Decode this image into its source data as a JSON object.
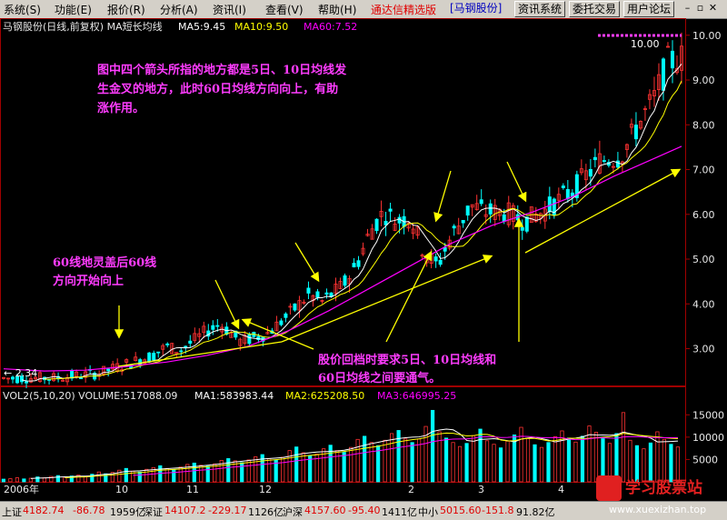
{
  "menu": {
    "items": [
      "系统(S)",
      "功能(E)",
      "报价(R)",
      "分析(A)",
      "资讯(I)",
      "查看(V)",
      "帮助(H)"
    ],
    "brand": "通达信精选版",
    "stock_button": "[马钢股份]",
    "buttons": [
      "资讯系统",
      "委托交易",
      "用户论坛"
    ]
  },
  "chart_header": {
    "title": "马钢股份(日线,前复权) MA短长均线",
    "ma5": "MA5:9.45",
    "ma10": "MA10:9.50",
    "ma60": "MA60:7.52"
  },
  "volume_header": {
    "title": "VOL2(5,10,20) VOLUME:517088.09",
    "ma1": "MA1:583983.44",
    "ma2": "MA2:625208.50",
    "ma3": "MA3:646995.25"
  },
  "annotations": {
    "top_line1": "图中四个箭头所指的地方都是5日、10日均线发",
    "top_line2": "生金叉的地方，此时60日均线方向向上，有助",
    "top_line3": "涨作用。",
    "left_line1": "60线地灵盖后60线",
    "left_line2": "方向开始向上",
    "bottom_line1": "股价回档时要求5日、10日均线和",
    "bottom_line2": "60日均线之间要通气。"
  },
  "labels": {
    "high_price": "10.00",
    "low_price": "← 2.34"
  },
  "time_axis": [
    "2006年",
    "10",
    "11",
    "12",
    "2",
    "3",
    "4"
  ],
  "status": {
    "sh_label": "上证",
    "sh_value": "4182.74",
    "sh_change": "-86.78",
    "sh_amount": "1959亿",
    "sz_label": "深证",
    "sz_value": "14107.2",
    "sz_change": "-229.17",
    "sz_amount": "1126亿",
    "hs_label": "沪深",
    "hs_value": "4157.60",
    "hs_change": "-95.40",
    "hs_amount": "1411亿",
    "zx_label": "中小",
    "zx_value": "5015.60",
    "zx_change": "-151.8",
    "zx_amount": "91.82亿"
  },
  "watermark": {
    "title": "学习股票站",
    "url": "www.xuexizhan.top"
  },
  "colors": {
    "up": "#ff3232",
    "down": "#00ffff",
    "ma5": "#ffffff",
    "ma10": "#ffff00",
    "ma60": "#ff00ff",
    "annotation": "#ff3cff",
    "arrow": "#ffff00"
  },
  "chart_data": {
    "type": "candlestick",
    "price_axis": {
      "ticks": [
        3.0,
        4.0,
        5.0,
        6.0,
        7.0,
        8.0,
        9.0,
        10.0
      ],
      "range": [
        2.3,
        10.3
      ]
    },
    "volume_axis": {
      "ticks": [
        5000,
        10000,
        15000
      ],
      "range": [
        0,
        17500
      ]
    },
    "ma60_path": [
      [
        0,
        2.55
      ],
      [
        30,
        2.5
      ],
      [
        60,
        2.52
      ],
      [
        90,
        2.6
      ],
      [
        120,
        2.7
      ],
      [
        150,
        2.85
      ],
      [
        180,
        3.05
      ],
      [
        210,
        3.4
      ],
      [
        240,
        3.85
      ],
      [
        270,
        4.35
      ],
      [
        300,
        4.85
      ],
      [
        330,
        5.35
      ],
      [
        360,
        5.75
      ],
      [
        390,
        6.05
      ],
      [
        420,
        6.4
      ],
      [
        450,
        6.85
      ],
      [
        480,
        7.25
      ],
      [
        500,
        7.52
      ]
    ],
    "price_path": [
      [
        0,
        2.34
      ],
      [
        40,
        2.35
      ],
      [
        70,
        2.45
      ],
      [
        90,
        2.65
      ],
      [
        110,
        2.85
      ],
      [
        120,
        3.05
      ],
      [
        130,
        2.95
      ],
      [
        150,
        3.4
      ],
      [
        160,
        3.55
      ],
      [
        175,
        3.15
      ],
      [
        195,
        3.35
      ],
      [
        210,
        3.75
      ],
      [
        225,
        4.2
      ],
      [
        235,
        4.05
      ],
      [
        250,
        4.4
      ],
      [
        260,
        4.85
      ],
      [
        270,
        5.6
      ],
      [
        280,
        6.05
      ],
      [
        290,
        5.85
      ],
      [
        300,
        5.95
      ],
      [
        310,
        5.15
      ],
      [
        320,
        4.85
      ],
      [
        330,
        5.5
      ],
      [
        345,
        6.2
      ],
      [
        355,
        6.05
      ],
      [
        370,
        6.05
      ],
      [
        385,
        5.85
      ],
      [
        400,
        6.1
      ],
      [
        420,
        6.55
      ],
      [
        440,
        7.2
      ],
      [
        455,
        7.3
      ],
      [
        470,
        8.1
      ],
      [
        480,
        8.6
      ],
      [
        490,
        9.4
      ],
      [
        500,
        9.5
      ]
    ],
    "volume_series": [
      600,
      700,
      900,
      650,
      800,
      1100,
      900,
      1200,
      1400,
      1000,
      1300,
      1500,
      1200,
      1700,
      2200,
      1800,
      2100,
      2600,
      3000,
      2400,
      2200,
      2800,
      3200,
      3600,
      3000,
      2700,
      3300,
      3900,
      4200,
      3700,
      3500,
      4000,
      4800,
      5200,
      4700,
      4300,
      4900,
      5600,
      6100,
      5200,
      4800,
      5500,
      7000,
      7800,
      6500,
      5800,
      6200,
      7400,
      8200,
      7000,
      6600,
      7700,
      9500,
      10200,
      8800,
      8100,
      9300,
      10800,
      11500,
      9600,
      8800,
      9600,
      12400,
      16000,
      11200,
      9800,
      8800,
      7900,
      8600,
      10300,
      11800,
      9200,
      8400,
      7600,
      9100,
      10500,
      12200,
      9700,
      8300,
      7700,
      8800,
      10100,
      11400,
      9800,
      8900,
      10200,
      12500,
      11100,
      9700,
      8600,
      10800,
      15500,
      9300,
      8100,
      7400,
      8700,
      11200,
      9500,
      8400,
      7800
    ]
  }
}
